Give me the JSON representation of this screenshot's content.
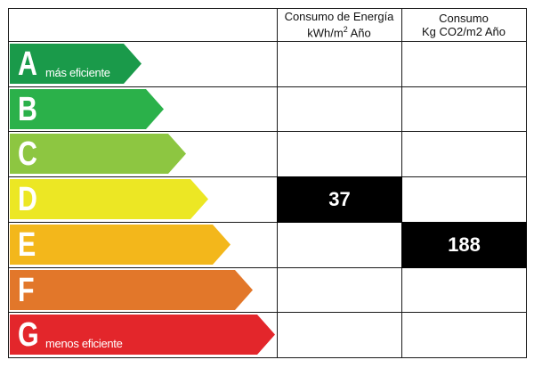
{
  "chart_data": {
    "type": "table",
    "columns": [
      {
        "line1": "Consumo de Energía",
        "line2_pre": "kWh/m",
        "line2_sup": "2",
        "line2_post": " Año"
      },
      {
        "line1": "Consumo",
        "line2_pre": "Kg CO2/m2 Año",
        "line2_sup": "",
        "line2_post": ""
      }
    ],
    "ratings": [
      {
        "letter": "A",
        "label": "más eficiente",
        "color": "#1a9a4a"
      },
      {
        "letter": "B",
        "label": "",
        "color": "#2bb14a"
      },
      {
        "letter": "C",
        "label": "",
        "color": "#8dc641"
      },
      {
        "letter": "D",
        "label": "",
        "color": "#ece724"
      },
      {
        "letter": "E",
        "label": "",
        "color": "#f3b71b"
      },
      {
        "letter": "F",
        "label": "",
        "color": "#e2772a"
      },
      {
        "letter": "G",
        "label": "menos eficiente",
        "color": "#e3262b"
      }
    ],
    "values": [
      {
        "column": 0,
        "rating": "D",
        "value": "37"
      },
      {
        "column": 1,
        "rating": "E",
        "value": "188"
      }
    ]
  }
}
